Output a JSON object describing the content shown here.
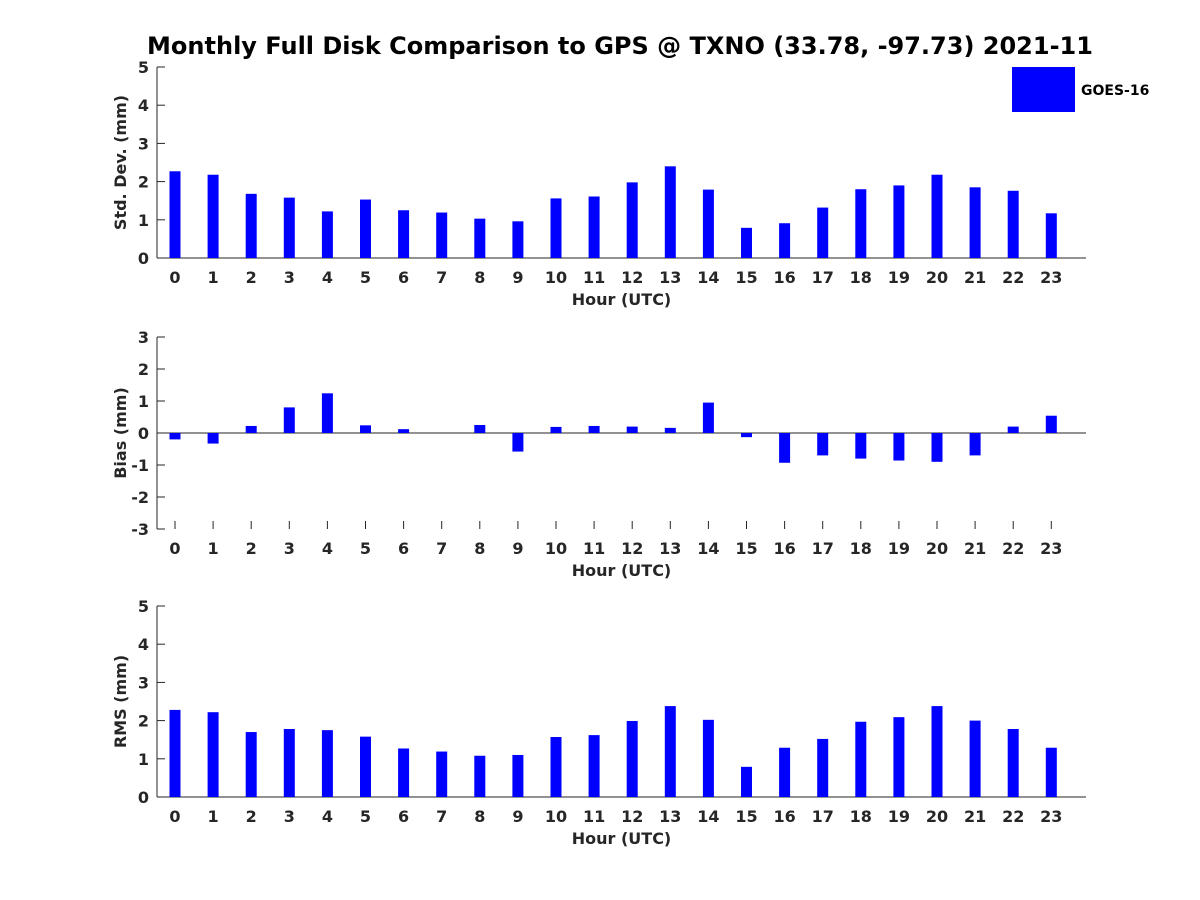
{
  "title": "Monthly Full Disk Comparison to GPS @ TXNO (33.78, -97.73) 2021-11",
  "legend": {
    "label": "GOES-16",
    "color": "#0000ff"
  },
  "chart_data": [
    {
      "type": "bar",
      "title": "Monthly Full Disk Comparison to GPS @ TXNO (33.78, -97.73) 2021-11",
      "xlabel": "Hour (UTC)",
      "ylabel": "Std. Dev. (mm)",
      "ylim": [
        0,
        5
      ],
      "yticks": [
        "0",
        "1",
        "2",
        "3",
        "4",
        "5"
      ],
      "categories": [
        "0",
        "1",
        "2",
        "3",
        "4",
        "5",
        "6",
        "7",
        "8",
        "9",
        "10",
        "11",
        "12",
        "13",
        "14",
        "15",
        "16",
        "17",
        "18",
        "19",
        "20",
        "21",
        "22",
        "23"
      ],
      "series": [
        {
          "name": "GOES-16",
          "values": [
            2.27,
            2.18,
            1.68,
            1.58,
            1.22,
            1.53,
            1.25,
            1.19,
            1.03,
            0.96,
            1.56,
            1.61,
            1.98,
            2.4,
            1.79,
            0.79,
            0.91,
            1.32,
            1.8,
            1.9,
            2.18,
            1.85,
            1.76,
            1.17
          ]
        }
      ],
      "legend": "top-right"
    },
    {
      "type": "bar",
      "xlabel": "Hour (UTC)",
      "ylabel": "Bias (mm)",
      "ylim": [
        -3,
        3
      ],
      "yticks": [
        "-3",
        "-2",
        "-1",
        "0",
        "1",
        "2",
        "3"
      ],
      "categories": [
        "0",
        "1",
        "2",
        "3",
        "4",
        "5",
        "6",
        "7",
        "8",
        "9",
        "10",
        "11",
        "12",
        "13",
        "14",
        "15",
        "16",
        "17",
        "18",
        "19",
        "20",
        "21",
        "22",
        "23"
      ],
      "series": [
        {
          "name": "GOES-16",
          "values": [
            -0.2,
            -0.33,
            0.22,
            0.8,
            1.24,
            0.24,
            0.12,
            0.0,
            0.25,
            -0.58,
            0.19,
            0.22,
            0.2,
            0.16,
            0.95,
            -0.13,
            -0.93,
            -0.7,
            -0.8,
            -0.86,
            -0.9,
            -0.7,
            0.2,
            0.54
          ]
        }
      ]
    },
    {
      "type": "bar",
      "xlabel": "Hour (UTC)",
      "ylabel": "RMS (mm)",
      "ylim": [
        0,
        5
      ],
      "yticks": [
        "0",
        "1",
        "2",
        "3",
        "4",
        "5"
      ],
      "categories": [
        "0",
        "1",
        "2",
        "3",
        "4",
        "5",
        "6",
        "7",
        "8",
        "9",
        "10",
        "11",
        "12",
        "13",
        "14",
        "15",
        "16",
        "17",
        "18",
        "19",
        "20",
        "21",
        "22",
        "23"
      ],
      "series": [
        {
          "name": "GOES-16",
          "values": [
            2.28,
            2.22,
            1.7,
            1.78,
            1.75,
            1.58,
            1.27,
            1.19,
            1.08,
            1.1,
            1.57,
            1.62,
            1.99,
            2.38,
            2.02,
            0.79,
            1.29,
            1.52,
            1.97,
            2.09,
            2.38,
            2.0,
            1.78,
            1.29
          ]
        }
      ]
    }
  ]
}
